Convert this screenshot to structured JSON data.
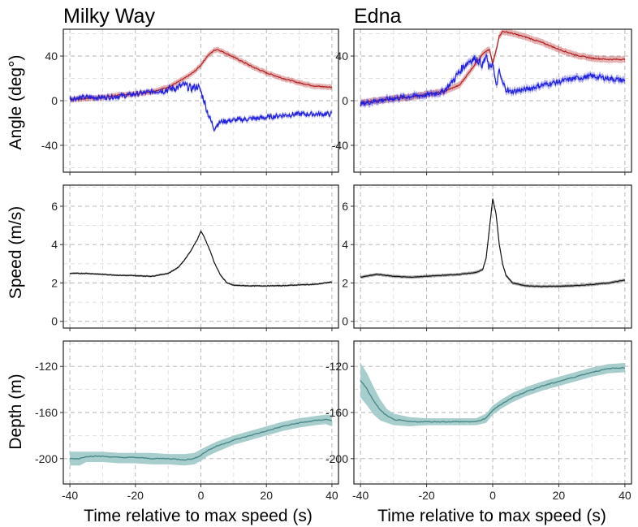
{
  "figure": {
    "x_label": "Time relative to max speed (s)",
    "columns": [
      "Milky Way",
      "Edna"
    ],
    "row_labels": [
      "Angle (deg°)",
      "Speed (m/s)",
      "Depth (m)"
    ]
  },
  "chart_data": [
    {
      "type": "line",
      "panel": "Milky Way — Angle",
      "title": "Milky Way",
      "xlabel": "",
      "ylabel": "Angle (deg°)",
      "xlim": [
        -42,
        42
      ],
      "ylim": [
        -64,
        64
      ],
      "xticks": [
        -40,
        -20,
        0,
        20,
        40
      ],
      "yticks": [
        -40,
        0,
        40
      ],
      "series": [
        {
          "name": "red",
          "color": "#b22222",
          "ribbon": 2.5,
          "x": [
            -40,
            -35,
            -30,
            -25,
            -20,
            -15,
            -10,
            -5,
            -2,
            0,
            2,
            4,
            5,
            8,
            12,
            16,
            20,
            25,
            30,
            35,
            40
          ],
          "y": [
            1,
            2,
            3,
            5,
            6,
            8,
            12,
            20,
            26,
            32,
            40,
            45,
            46,
            42,
            36,
            30,
            25,
            20,
            16,
            13,
            12
          ]
        },
        {
          "name": "blue",
          "color": "#1f1fe0",
          "ribbon": 2,
          "x": [
            -40,
            -35,
            -30,
            -25,
            -20,
            -15,
            -10,
            -7,
            -5,
            -3,
            -1,
            0,
            1,
            2,
            3,
            4,
            5,
            6,
            8,
            12,
            16,
            20,
            25,
            30,
            35,
            40
          ],
          "y": [
            2,
            3,
            3,
            4,
            6,
            8,
            10,
            12,
            14,
            11,
            13,
            8,
            0,
            -10,
            -18,
            -24,
            -21,
            -19,
            -18,
            -17,
            -16,
            -15,
            -13,
            -12,
            -12,
            -12
          ]
        }
      ]
    },
    {
      "type": "line",
      "panel": "Edna — Angle",
      "title": "Edna",
      "xlabel": "",
      "ylabel": "",
      "xlim": [
        -42,
        42
      ],
      "ylim": [
        -64,
        64
      ],
      "xticks": [
        -40,
        -20,
        0,
        20,
        40
      ],
      "yticks": [
        -40,
        0,
        40
      ],
      "series": [
        {
          "name": "red",
          "color": "#b22222",
          "ribbon": 3,
          "x": [
            -40,
            -35,
            -30,
            -25,
            -20,
            -15,
            -10,
            -6,
            -3,
            -1,
            0,
            1,
            2,
            3,
            5,
            10,
            15,
            20,
            25,
            30,
            35,
            40
          ],
          "y": [
            -2,
            0,
            2,
            3,
            6,
            8,
            14,
            30,
            42,
            46,
            33,
            45,
            58,
            62,
            61,
            57,
            52,
            46,
            41,
            38,
            37,
            37
          ]
        },
        {
          "name": "blue",
          "color": "#1f1fe0",
          "ribbon": 3,
          "x": [
            -40,
            -35,
            -30,
            -25,
            -20,
            -15,
            -12,
            -9,
            -7,
            -5,
            -3,
            -2,
            -1,
            0,
            1,
            2,
            3,
            5,
            10,
            15,
            20,
            25,
            30,
            35,
            40
          ],
          "y": [
            -3,
            0,
            2,
            4,
            5,
            8,
            18,
            30,
            36,
            38,
            32,
            40,
            28,
            35,
            12,
            26,
            15,
            8,
            10,
            14,
            17,
            20,
            22,
            20,
            18
          ]
        }
      ]
    },
    {
      "type": "line",
      "panel": "Milky Way — Speed",
      "title": "",
      "xlabel": "",
      "ylabel": "Speed (m/s)",
      "xlim": [
        -42,
        42
      ],
      "ylim": [
        -0.35,
        7.1
      ],
      "xticks": [
        -40,
        -20,
        0,
        20,
        40
      ],
      "yticks": [
        0,
        2,
        4,
        6
      ],
      "series": [
        {
          "name": "speed",
          "color": "#111111",
          "ribbon": 0.05,
          "x": [
            -40,
            -35,
            -30,
            -25,
            -20,
            -15,
            -10,
            -7,
            -5,
            -3,
            -1,
            0,
            1,
            2,
            3,
            4,
            6,
            8,
            10,
            15,
            20,
            25,
            30,
            35,
            40
          ],
          "y": [
            2.5,
            2.5,
            2.45,
            2.4,
            2.38,
            2.35,
            2.5,
            2.8,
            3.2,
            3.7,
            4.3,
            4.7,
            4.4,
            4.0,
            3.6,
            3.1,
            2.4,
            2.0,
            1.88,
            1.85,
            1.85,
            1.86,
            1.9,
            1.93,
            2.05
          ]
        }
      ]
    },
    {
      "type": "line",
      "panel": "Edna — Speed",
      "title": "",
      "xlabel": "",
      "ylabel": "",
      "xlim": [
        -42,
        42
      ],
      "ylim": [
        -0.35,
        7.1
      ],
      "xticks": [
        -40,
        -20,
        0,
        20,
        40
      ],
      "yticks": [
        0,
        2,
        4,
        6
      ],
      "series": [
        {
          "name": "speed",
          "color": "#111111",
          "ribbon": 0.08,
          "x": [
            -40,
            -35,
            -30,
            -25,
            -20,
            -15,
            -10,
            -5,
            -3,
            -2,
            -1,
            0,
            1,
            2,
            3,
            4,
            6,
            10,
            15,
            20,
            25,
            30,
            35,
            40
          ],
          "y": [
            2.3,
            2.45,
            2.35,
            2.3,
            2.35,
            2.4,
            2.45,
            2.55,
            2.7,
            3.3,
            4.8,
            6.4,
            5.6,
            4.0,
            3.0,
            2.4,
            2.0,
            1.85,
            1.82,
            1.83,
            1.86,
            1.92,
            2.0,
            2.15
          ]
        }
      ]
    },
    {
      "type": "area",
      "panel": "Milky Way — Depth",
      "title": "",
      "xlabel": "Time relative to max speed (s)",
      "ylabel": "Depth (m)",
      "xlim": [
        -42,
        42
      ],
      "ylim": [
        -222,
        -98
      ],
      "xticks": [
        -40,
        -20,
        0,
        20,
        40
      ],
      "yticks": [
        -200,
        -160,
        -120
      ],
      "series": [
        {
          "name": "depth",
          "color": "#4a8a8a",
          "band": "#a8cdcd",
          "x": [
            -40,
            -37,
            -35,
            -30,
            -25,
            -20,
            -15,
            -10,
            -5,
            -2,
            0,
            2,
            5,
            10,
            15,
            20,
            25,
            30,
            35,
            38,
            40
          ],
          "y": [
            -200,
            -200,
            -198,
            -198,
            -199,
            -199,
            -200,
            -200,
            -201,
            -200,
            -197,
            -193,
            -189,
            -184,
            -180,
            -176,
            -172,
            -169,
            -167,
            -166,
            -167
          ],
          "upper": [
            -194,
            -194,
            -194,
            -194,
            -195,
            -195,
            -195,
            -196,
            -196,
            -195,
            -192,
            -189,
            -185,
            -180,
            -176,
            -172,
            -168,
            -165,
            -163,
            -162,
            -162
          ],
          "lower": [
            -206,
            -206,
            -203,
            -203,
            -204,
            -204,
            -205,
            -205,
            -206,
            -205,
            -202,
            -198,
            -194,
            -188,
            -184,
            -180,
            -176,
            -173,
            -171,
            -170,
            -172
          ]
        }
      ]
    },
    {
      "type": "area",
      "panel": "Edna — Depth",
      "title": "",
      "xlabel": "Time relative to max speed (s)",
      "ylabel": "",
      "xlim": [
        -42,
        42
      ],
      "ylim": [
        -222,
        -98
      ],
      "xticks": [
        -40,
        -20,
        0,
        20,
        40
      ],
      "yticks": [
        -200,
        -160,
        -120
      ],
      "series": [
        {
          "name": "depth",
          "color": "#4a8a8a",
          "band": "#a8cdcd",
          "x": [
            -40,
            -38,
            -36,
            -34,
            -32,
            -30,
            -25,
            -20,
            -15,
            -10,
            -5,
            -2,
            0,
            3,
            6,
            10,
            15,
            20,
            25,
            30,
            35,
            40
          ],
          "y": [
            -132,
            -140,
            -150,
            -158,
            -163,
            -166,
            -168,
            -168,
            -168,
            -168,
            -168,
            -165,
            -158,
            -152,
            -147,
            -142,
            -137,
            -133,
            -129,
            -125,
            -122,
            -121
          ],
          "upper": [
            -117,
            -126,
            -138,
            -149,
            -157,
            -161,
            -164,
            -165,
            -165,
            -165,
            -165,
            -161,
            -154,
            -148,
            -143,
            -138,
            -133,
            -129,
            -125,
            -121,
            -118,
            -117
          ],
          "lower": [
            -147,
            -154,
            -162,
            -167,
            -169,
            -171,
            -172,
            -171,
            -171,
            -171,
            -171,
            -169,
            -162,
            -156,
            -151,
            -146,
            -141,
            -137,
            -133,
            -129,
            -126,
            -125
          ]
        }
      ]
    }
  ]
}
